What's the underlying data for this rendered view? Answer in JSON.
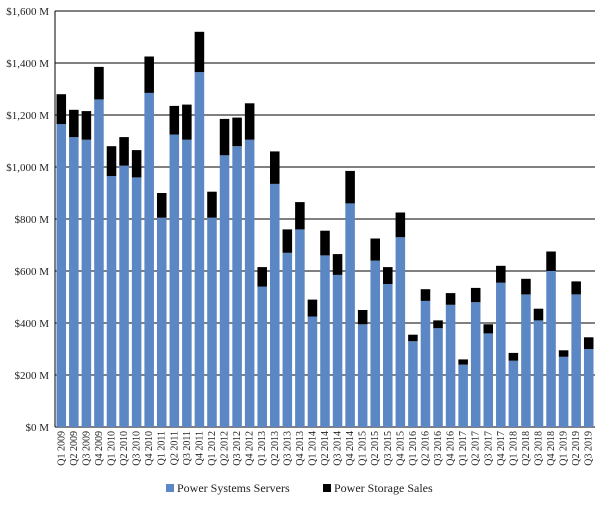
{
  "colors": {
    "servers": "#5b87c5",
    "storage": "#000000",
    "grid": "#000000",
    "background": "#ffffff"
  },
  "chart_data": {
    "type": "bar",
    "stacked": true,
    "title": "",
    "xlabel": "",
    "ylabel": "",
    "ylim": [
      0,
      1600
    ],
    "y_ticks": [
      0,
      200,
      400,
      600,
      800,
      1000,
      1200,
      1400,
      1600
    ],
    "y_tick_labels": [
      "$0 M",
      "$200 M",
      "$400 M",
      "$600 M",
      "$800 M",
      "$1,000 M",
      "$1,200 M",
      "$1,400 M",
      "$1,600 M"
    ],
    "grid": true,
    "legend_position": "bottom",
    "categories": [
      "Q1 2009",
      "Q2 2009",
      "Q3 2009",
      "Q4 2009",
      "Q1 2010",
      "Q2 2010",
      "Q3 2010",
      "Q4 2010",
      "Q1 2011",
      "Q2 2011",
      "Q3 2011",
      "Q4 2011",
      "Q1 2012",
      "Q2 2012",
      "Q3 2012",
      "Q4 2012",
      "Q1 2013",
      "Q2 2013",
      "Q3 2013",
      "Q4 2013",
      "Q1 2014",
      "Q2 2014",
      "Q3 2014",
      "Q4 2014",
      "Q1 2015",
      "Q2 2015",
      "Q3 2015",
      "Q4 2015",
      "Q1 2016",
      "Q2 2016",
      "Q3 2016",
      "Q4 2016",
      "Q1 2017",
      "Q2 2017",
      "Q3 2017",
      "Q4 2017",
      "Q1 2018",
      "Q2 2018",
      "Q3 2018",
      "Q4 2018",
      "Q1 2019",
      "Q2 2019",
      "Q3 2019"
    ],
    "series": [
      {
        "name": "Power Systems Servers",
        "color": "#5b87c5",
        "values": [
          1165,
          1115,
          1105,
          1260,
          965,
          1005,
          960,
          1285,
          805,
          1125,
          1105,
          1365,
          805,
          1045,
          1080,
          1105,
          540,
          935,
          670,
          760,
          425,
          660,
          585,
          860,
          395,
          640,
          550,
          730,
          330,
          485,
          380,
          470,
          240,
          480,
          360,
          555,
          255,
          510,
          410,
          600,
          270,
          510,
          300
        ]
      },
      {
        "name": "Power Storage Sales",
        "color": "#000000",
        "values": [
          115,
          105,
          110,
          125,
          115,
          110,
          105,
          140,
          95,
          110,
          135,
          155,
          100,
          140,
          110,
          140,
          75,
          125,
          90,
          105,
          65,
          95,
          80,
          125,
          55,
          85,
          65,
          95,
          25,
          45,
          30,
          45,
          20,
          55,
          35,
          65,
          30,
          60,
          45,
          75,
          25,
          50,
          45
        ]
      }
    ]
  }
}
